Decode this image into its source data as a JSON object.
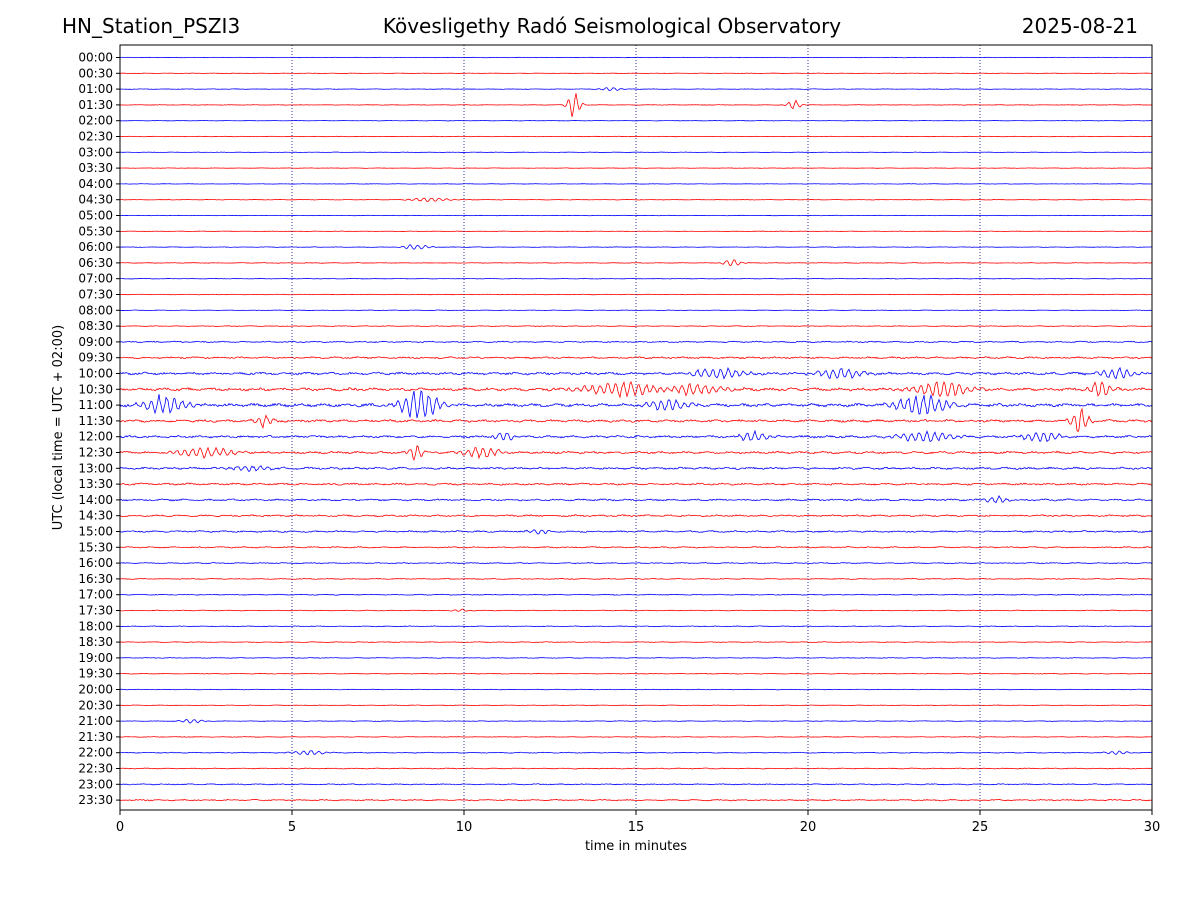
{
  "header": {
    "station": "HN_Station_PSZI3",
    "observatory": "Kövesligethy Radó Seismological Observatory",
    "date": "2025-08-21"
  },
  "colors": {
    "odd_trace": "#0000ff",
    "even_trace": "#ff0000",
    "gridline": "#000080",
    "axes": "#000000"
  },
  "chart_data": {
    "type": "line",
    "title": "Kövesligethy Radó Seismological Observatory",
    "xlabel": "time in minutes",
    "ylabel": "UTC (local time = UTC + 02:00)",
    "xlim": [
      0,
      30
    ],
    "xticks": [
      0,
      5,
      10,
      15,
      20,
      25,
      30
    ],
    "vertical_grid_minutes": [
      5,
      10,
      15,
      20,
      25
    ],
    "grid": "vertical dotted",
    "trace_colors": [
      "blue",
      "red"
    ],
    "row_labels": [
      "00:00",
      "00:30",
      "01:00",
      "01:30",
      "02:00",
      "02:30",
      "03:00",
      "03:30",
      "04:00",
      "04:30",
      "05:00",
      "05:30",
      "06:00",
      "06:30",
      "07:00",
      "07:30",
      "08:00",
      "08:30",
      "09:00",
      "09:30",
      "10:00",
      "10:30",
      "11:00",
      "11:30",
      "12:00",
      "12:30",
      "13:00",
      "13:30",
      "14:00",
      "14:30",
      "15:00",
      "15:30",
      "16:00",
      "16:30",
      "17:00",
      "17:30",
      "18:00",
      "18:30",
      "19:00",
      "19:30",
      "20:00",
      "20:30",
      "21:00",
      "21:30",
      "22:00",
      "22:30",
      "23:00",
      "23:30"
    ],
    "noise_level": [
      0.3,
      0.3,
      0.35,
      0.35,
      0.3,
      0.3,
      0.35,
      0.3,
      0.3,
      0.35,
      0.3,
      0.3,
      0.35,
      0.4,
      0.35,
      0.35,
      0.4,
      0.5,
      0.9,
      1.2,
      1.6,
      1.9,
      2.0,
      1.6,
      1.5,
      1.5,
      1.4,
      1.3,
      1.2,
      1.2,
      1.1,
      0.9,
      0.7,
      0.6,
      0.6,
      0.5,
      0.5,
      0.5,
      0.45,
      0.45,
      0.4,
      0.4,
      0.4,
      0.4,
      0.55,
      0.6,
      0.7,
      0.9
    ],
    "events": [
      {
        "row": 2,
        "minute": 14.3,
        "amplitude": 2,
        "duration": 0.5
      },
      {
        "row": 3,
        "minute": 13.2,
        "amplitude": 14,
        "duration": 0.3
      },
      {
        "row": 3,
        "minute": 19.6,
        "amplitude": 5,
        "duration": 0.3
      },
      {
        "row": 9,
        "minute": 9.0,
        "amplitude": 2.5,
        "duration": 0.8
      },
      {
        "row": 12,
        "minute": 8.6,
        "amplitude": 3,
        "duration": 0.6
      },
      {
        "row": 13,
        "minute": 17.8,
        "amplitude": 4,
        "duration": 0.4
      },
      {
        "row": 20,
        "minute": 17.4,
        "amplitude": 6,
        "duration": 1.2
      },
      {
        "row": 20,
        "minute": 20.9,
        "amplitude": 6,
        "duration": 1.0
      },
      {
        "row": 20,
        "minute": 29.0,
        "amplitude": 6,
        "duration": 0.8
      },
      {
        "row": 21,
        "minute": 14.8,
        "amplitude": 8,
        "duration": 2.0
      },
      {
        "row": 21,
        "minute": 16.5,
        "amplitude": 7,
        "duration": 1.5
      },
      {
        "row": 21,
        "minute": 23.9,
        "amplitude": 9,
        "duration": 1.2
      },
      {
        "row": 21,
        "minute": 28.5,
        "amplitude": 10,
        "duration": 0.5
      },
      {
        "row": 22,
        "minute": 1.3,
        "amplitude": 10,
        "duration": 1.0
      },
      {
        "row": 22,
        "minute": 8.7,
        "amplitude": 17,
        "duration": 0.8
      },
      {
        "row": 22,
        "minute": 15.9,
        "amplitude": 6,
        "duration": 1.0
      },
      {
        "row": 22,
        "minute": 23.3,
        "amplitude": 11,
        "duration": 1.2
      },
      {
        "row": 23,
        "minute": 4.2,
        "amplitude": 6,
        "duration": 0.4
      },
      {
        "row": 23,
        "minute": 27.9,
        "amplitude": 14,
        "duration": 0.4
      },
      {
        "row": 24,
        "minute": 11.2,
        "amplitude": 5,
        "duration": 0.5
      },
      {
        "row": 24,
        "minute": 18.4,
        "amplitude": 6,
        "duration": 0.6
      },
      {
        "row": 24,
        "minute": 23.4,
        "amplitude": 6,
        "duration": 1.2
      },
      {
        "row": 24,
        "minute": 26.8,
        "amplitude": 6,
        "duration": 0.8
      },
      {
        "row": 25,
        "minute": 2.5,
        "amplitude": 5,
        "duration": 1.5
      },
      {
        "row": 25,
        "minute": 8.6,
        "amplitude": 9,
        "duration": 0.3
      },
      {
        "row": 25,
        "minute": 10.5,
        "amplitude": 6,
        "duration": 0.8
      },
      {
        "row": 26,
        "minute": 3.8,
        "amplitude": 3,
        "duration": 1.0
      },
      {
        "row": 28,
        "minute": 25.5,
        "amplitude": 4,
        "duration": 0.5
      },
      {
        "row": 30,
        "minute": 12.2,
        "amplitude": 3,
        "duration": 0.5
      },
      {
        "row": 35,
        "minute": 9.9,
        "amplitude": 1.5,
        "duration": 0.4
      },
      {
        "row": 42,
        "minute": 2.1,
        "amplitude": 2.5,
        "duration": 0.5
      },
      {
        "row": 44,
        "minute": 5.5,
        "amplitude": 2.5,
        "duration": 0.8
      },
      {
        "row": 44,
        "minute": 29.0,
        "amplitude": 2,
        "duration": 0.6
      }
    ]
  }
}
